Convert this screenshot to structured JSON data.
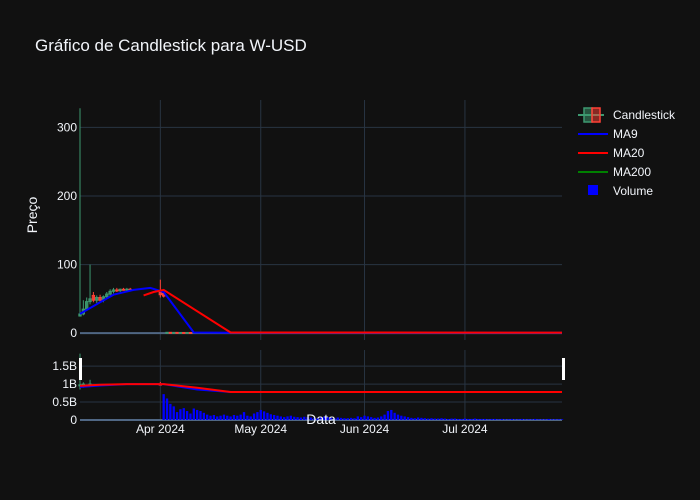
{
  "colors": {
    "background": "#111111",
    "grid": "#283442",
    "zero_line": "#506784",
    "increasing": "#3d9970",
    "decreasing": "#ff4136",
    "ma9": "#0000ff",
    "ma20": "#ff0000",
    "ma200": "#008000",
    "volume": "#0000ff"
  },
  "chart_data": {
    "type": "candlestick",
    "title": "Gráfico de Candlestick para W-USD",
    "xlabel": "Data",
    "ylabel": "Preço",
    "legend_position": "top-right",
    "grid": true,
    "x_range": [
      "2024-03-08",
      "2024-07-30"
    ],
    "x_ticks": [
      "2024-04-01",
      "2024-05-01",
      "2024-06-01",
      "2024-07-01"
    ],
    "x_tick_labels": [
      "Apr 2024",
      "May 2024",
      "Jun 2024",
      "Jul 2024"
    ],
    "price_axis": {
      "range": [
        -10,
        340
      ],
      "ticks": [
        0,
        100,
        200,
        300
      ],
      "tick_labels": [
        "0",
        "100",
        "200",
        "300"
      ]
    },
    "volume_axis": {
      "range": [
        0,
        1.95
      ],
      "ticks": [
        0,
        0.5,
        1,
        1.5
      ],
      "tick_labels": [
        "0",
        "0.5B",
        "1B",
        "1.5B"
      ],
      "unit": "B"
    },
    "legend": [
      "Candlestick",
      "MA9",
      "MA20",
      "MA200",
      "Volume"
    ],
    "candles": [
      {
        "date": "2024-03-08",
        "open": 25,
        "high": 328,
        "low": 24,
        "close": 28
      },
      {
        "date": "2024-03-09",
        "open": 28,
        "high": 48,
        "low": 26,
        "close": 35
      },
      {
        "date": "2024-03-10",
        "open": 35,
        "high": 52,
        "low": 33,
        "close": 46
      },
      {
        "date": "2024-03-11",
        "open": 46,
        "high": 100,
        "low": 42,
        "close": 50
      },
      {
        "date": "2024-03-12",
        "open": 55,
        "high": 60,
        "low": 45,
        "close": 48
      },
      {
        "date": "2024-03-13",
        "open": 48,
        "high": 55,
        "low": 44,
        "close": 52
      },
      {
        "date": "2024-03-14",
        "open": 52,
        "high": 56,
        "low": 46,
        "close": 48
      },
      {
        "date": "2024-03-15",
        "open": 48,
        "high": 55,
        "low": 45,
        "close": 53
      },
      {
        "date": "2024-03-16",
        "open": 53,
        "high": 60,
        "low": 50,
        "close": 57
      },
      {
        "date": "2024-03-17",
        "open": 57,
        "high": 64,
        "low": 54,
        "close": 61
      },
      {
        "date": "2024-03-18",
        "open": 61,
        "high": 66,
        "low": 58,
        "close": 63
      },
      {
        "date": "2024-03-19",
        "open": 63,
        "high": 66,
        "low": 60,
        "close": 62
      },
      {
        "date": "2024-03-20",
        "open": 62,
        "high": 65,
        "low": 60,
        "close": 64
      },
      {
        "date": "2024-03-21",
        "open": 64,
        "high": 66,
        "low": 62,
        "close": 63
      },
      {
        "date": "2024-03-22",
        "open": 63,
        "high": 66,
        "low": 61,
        "close": 64
      },
      {
        "date": "2024-03-23",
        "open": 64,
        "high": 66,
        "low": 62,
        "close": 63
      },
      {
        "date": "2024-04-01",
        "open": 60,
        "high": 78,
        "low": 52,
        "close": 56
      },
      {
        "date": "2024-04-02",
        "open": 58,
        "high": 62,
        "low": 52,
        "close": 54
      },
      {
        "date": "2024-04-03",
        "open": 1.0,
        "high": 1.6,
        "low": 0.6,
        "close": 1.2
      },
      {
        "date": "2024-04-04",
        "open": 1.2,
        "high": 1.5,
        "low": 0.7,
        "close": 0.9
      },
      {
        "date": "2024-04-05",
        "open": 0.9,
        "high": 1.3,
        "low": 0.6,
        "close": 1.1
      },
      {
        "date": "2024-04-06",
        "open": 1.1,
        "high": 1.4,
        "low": 0.6,
        "close": 0.8
      },
      {
        "date": "2024-04-07",
        "open": 0.8,
        "high": 1.2,
        "low": 0.5,
        "close": 1.0
      },
      {
        "date": "2024-04-08",
        "open": 1.0,
        "high": 1.3,
        "low": 0.6,
        "close": 0.9
      },
      {
        "date": "2024-04-09",
        "open": 0.9,
        "high": 1.2,
        "low": 0.5,
        "close": 1.0
      },
      {
        "date": "2024-04-10",
        "open": 1.0,
        "high": 1.2,
        "low": 0.6,
        "close": 0.8
      }
    ],
    "series": [
      {
        "name": "MA9",
        "x": [
          "2024-03-08",
          "2024-03-14",
          "2024-03-18",
          "2024-03-24",
          "2024-03-29",
          "2024-04-02",
          "2024-04-11",
          "2024-04-22",
          "2024-07-30"
        ],
        "values": [
          28,
          45,
          56,
          63,
          66,
          60,
          1,
          0.5,
          0.5
        ]
      },
      {
        "name": "MA20",
        "x": [
          "2024-03-27",
          "2024-03-30",
          "2024-04-02",
          "2024-04-22",
          "2024-07-30"
        ],
        "values": [
          55,
          60,
          63,
          1,
          0.8
        ]
      },
      {
        "name": "MA200",
        "x": [],
        "values": []
      }
    ],
    "volume": {
      "name": "Volume",
      "x": [
        "2024-04-02",
        "2024-04-03",
        "2024-04-04",
        "2024-04-05",
        "2024-04-06",
        "2024-04-07",
        "2024-04-08",
        "2024-04-09",
        "2024-04-10",
        "2024-04-11",
        "2024-04-12",
        "2024-04-13",
        "2024-04-14",
        "2024-04-15",
        "2024-04-16",
        "2024-04-17",
        "2024-04-18",
        "2024-04-19",
        "2024-04-20",
        "2024-04-21",
        "2024-04-22",
        "2024-04-23",
        "2024-04-24",
        "2024-04-25",
        "2024-04-26",
        "2024-04-27",
        "2024-04-28",
        "2024-04-29",
        "2024-04-30",
        "2024-05-01",
        "2024-05-02",
        "2024-05-03",
        "2024-05-04",
        "2024-05-05",
        "2024-05-06",
        "2024-05-07",
        "2024-05-08",
        "2024-05-09",
        "2024-05-10",
        "2024-05-11",
        "2024-05-12",
        "2024-05-13",
        "2024-05-14",
        "2024-05-15",
        "2024-05-16",
        "2024-05-17",
        "2024-05-18",
        "2024-05-19",
        "2024-05-20",
        "2024-05-21",
        "2024-05-22",
        "2024-05-23",
        "2024-05-24",
        "2024-05-25",
        "2024-05-26",
        "2024-05-27",
        "2024-05-28",
        "2024-05-29",
        "2024-05-30",
        "2024-05-31",
        "2024-06-01",
        "2024-06-02",
        "2024-06-03",
        "2024-06-04",
        "2024-06-05",
        "2024-06-06",
        "2024-06-07",
        "2024-06-08",
        "2024-06-09",
        "2024-06-10",
        "2024-06-11",
        "2024-06-12",
        "2024-06-13",
        "2024-06-14",
        "2024-06-15",
        "2024-06-16",
        "2024-06-17",
        "2024-06-18",
        "2024-06-19",
        "2024-06-20",
        "2024-06-21",
        "2024-06-22",
        "2024-06-23",
        "2024-06-24",
        "2024-06-25",
        "2024-06-26",
        "2024-06-27",
        "2024-06-28",
        "2024-06-29",
        "2024-06-30",
        "2024-07-01",
        "2024-07-02",
        "2024-07-03",
        "2024-07-04",
        "2024-07-05",
        "2024-07-06",
        "2024-07-07",
        "2024-07-08",
        "2024-07-09",
        "2024-07-10",
        "2024-07-11",
        "2024-07-12",
        "2024-07-13",
        "2024-07-14",
        "2024-07-15",
        "2024-07-16",
        "2024-07-17",
        "2024-07-18",
        "2024-07-19",
        "2024-07-20",
        "2024-07-21",
        "2024-07-22",
        "2024-07-23",
        "2024-07-24",
        "2024-07-25",
        "2024-07-26",
        "2024-07-27",
        "2024-07-28",
        "2024-07-29",
        "2024-07-30"
      ],
      "values": [
        0.72,
        0.6,
        0.45,
        0.38,
        0.22,
        0.3,
        0.33,
        0.25,
        0.18,
        0.32,
        0.28,
        0.25,
        0.2,
        0.15,
        0.12,
        0.14,
        0.1,
        0.12,
        0.15,
        0.12,
        0.1,
        0.14,
        0.12,
        0.15,
        0.22,
        0.12,
        0.1,
        0.18,
        0.22,
        0.28,
        0.24,
        0.2,
        0.16,
        0.14,
        0.12,
        0.1,
        0.08,
        0.1,
        0.12,
        0.09,
        0.08,
        0.07,
        0.09,
        0.08,
        0.07,
        0.06,
        0.05,
        0.07,
        0.1,
        0.08,
        0.06,
        0.05,
        0.07,
        0.06,
        0.05,
        0.05,
        0.06,
        0.05,
        0.1,
        0.08,
        0.12,
        0.1,
        0.08,
        0.06,
        0.07,
        0.1,
        0.15,
        0.25,
        0.28,
        0.2,
        0.15,
        0.12,
        0.1,
        0.08,
        0.06,
        0.05,
        0.07,
        0.06,
        0.05,
        0.04,
        0.05,
        0.04,
        0.04,
        0.05,
        0.04,
        0.03,
        0.04,
        0.04,
        0.03,
        0.03,
        0.04,
        0.03,
        0.03,
        0.04,
        0.03,
        0.03,
        0.03,
        0.02,
        0.03,
        0.03,
        0.02,
        0.03,
        0.02,
        0.02,
        0.03,
        0.02,
        0.02,
        0.03,
        0.02,
        0.02,
        0.02,
        0.03,
        0.02,
        0.02,
        0.02,
        0.03,
        0.02,
        0.02,
        0.02,
        0.02
      ]
    },
    "volume_overlay": {
      "candles": [
        {
          "date": "2024-03-08",
          "open": 0.95,
          "high": 1.85,
          "low": 0.85,
          "close": 0.98
        },
        {
          "date": "2024-03-09",
          "open": 0.98,
          "high": 1.05,
          "low": 0.9,
          "close": 1.0
        },
        {
          "date": "2024-03-11",
          "open": 0.98,
          "high": 1.12,
          "low": 0.95,
          "close": 1.0
        },
        {
          "date": "2024-04-01",
          "open": 1.0,
          "high": 1.06,
          "low": 0.97,
          "close": 0.99
        }
      ],
      "series": [
        {
          "name": "MA9",
          "x": [
            "2024-03-08",
            "2024-03-14",
            "2024-03-22",
            "2024-04-02",
            "2024-04-12",
            "2024-04-22",
            "2024-07-30"
          ],
          "values": [
            0.92,
            0.96,
            1.0,
            1.0,
            0.85,
            0.78,
            0.78
          ]
        },
        {
          "name": "MA20",
          "x": [
            "2024-03-08",
            "2024-03-14",
            "2024-03-22",
            "2024-04-02",
            "2024-04-12",
            "2024-04-22",
            "2024-07-30"
          ],
          "values": [
            0.95,
            0.98,
            1.0,
            1.0,
            0.9,
            0.78,
            0.78
          ]
        }
      ]
    }
  }
}
